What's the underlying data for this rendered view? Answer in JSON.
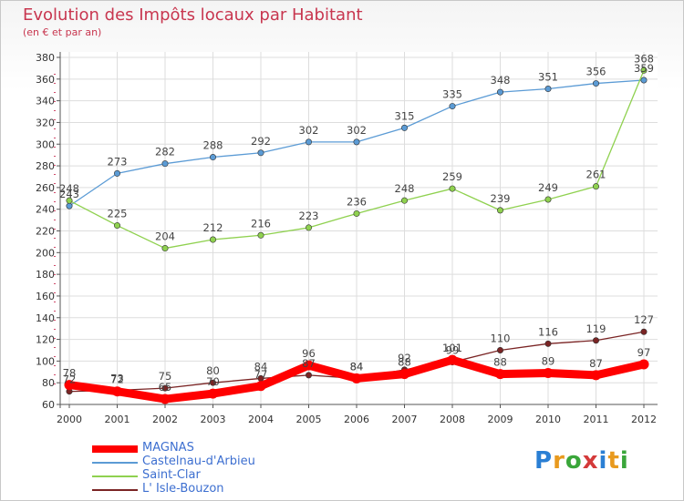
{
  "header": {
    "title": "Evolution des Impôts locaux par Habitant",
    "subtitle": "(en € et par an)"
  },
  "logo": {
    "text": "Proxiti",
    "colors": [
      "#2a7fd4",
      "#e89a1e",
      "#3aa63a",
      "#d43a3a",
      "#2a7fd4",
      "#e89a1e",
      "#3aa63a"
    ]
  },
  "chart_data": {
    "type": "line",
    "x": [
      "2000",
      "2001",
      "2002",
      "2003",
      "2004",
      "2005",
      "2006",
      "2007",
      "2008",
      "2009",
      "2010",
      "2011",
      "2012"
    ],
    "yticks": [
      60,
      80,
      100,
      120,
      140,
      160,
      180,
      200,
      220,
      240,
      260,
      280,
      300,
      320,
      340,
      360,
      380
    ],
    "ylim": [
      60,
      380
    ],
    "grid": true,
    "series": [
      {
        "name": "MAGNAS",
        "color": "#ff0000",
        "values": [
          78,
          72,
          65,
          70,
          77,
          96,
          84,
          88,
          101,
          88,
          89,
          87,
          97
        ],
        "labels": [
          "78",
          "72",
          "65",
          "70",
          "77",
          "96",
          "84",
          "88",
          "101",
          "88",
          "89",
          "87",
          "97"
        ]
      },
      {
        "name": "Castelnau-d'Arbieu",
        "color": "#5b9bd5",
        "values": [
          243,
          273,
          282,
          288,
          292,
          302,
          302,
          315,
          335,
          348,
          351,
          356,
          359
        ],
        "labels": [
          "243",
          "273",
          "282",
          "288",
          "292",
          "302",
          "302",
          "315",
          "335",
          "348",
          "351",
          "356",
          "359"
        ]
      },
      {
        "name": "Saint-Clar",
        "color": "#8fd14f",
        "values": [
          248,
          225,
          204,
          212,
          216,
          223,
          236,
          248,
          259,
          239,
          249,
          261,
          368
        ],
        "labels": [
          "248",
          "225",
          "204",
          "212",
          "216",
          "223",
          "236",
          "248",
          "259",
          "239",
          "249",
          "261",
          "368"
        ]
      },
      {
        "name": "L' Isle-Bouzon",
        "color": "#7a2424",
        "values": [
          72,
          73,
          75,
          80,
          84,
          87,
          84,
          92,
          99,
          110,
          116,
          119,
          127
        ],
        "labels": [
          "72",
          "73",
          "75",
          "80",
          "84",
          "87",
          "84",
          "92",
          "99",
          "110",
          "116",
          "119",
          "127"
        ]
      }
    ]
  }
}
